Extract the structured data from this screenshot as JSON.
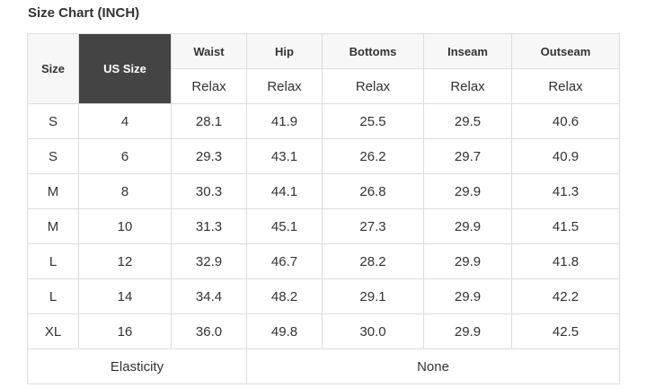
{
  "title": "Size Chart (INCH)",
  "headers": {
    "size": "Size",
    "us_size": "US Size",
    "measures": [
      "Waist",
      "Hip",
      "Bottoms",
      "Inseam",
      "Outseam"
    ],
    "sub": [
      "Relax",
      "Relax",
      "Relax",
      "Relax",
      "Relax"
    ]
  },
  "rows": [
    [
      "S",
      "4",
      "28.1",
      "41.9",
      "25.5",
      "29.5",
      "40.6"
    ],
    [
      "S",
      "6",
      "29.3",
      "43.1",
      "26.2",
      "29.7",
      "40.9"
    ],
    [
      "M",
      "8",
      "30.3",
      "44.1",
      "26.8",
      "29.9",
      "41.3"
    ],
    [
      "M",
      "10",
      "31.3",
      "45.1",
      "27.3",
      "29.9",
      "41.5"
    ],
    [
      "L",
      "12",
      "32.9",
      "46.7",
      "28.2",
      "29.9",
      "41.8"
    ],
    [
      "L",
      "14",
      "34.4",
      "48.2",
      "29.1",
      "29.9",
      "42.2"
    ],
    [
      "XL",
      "16",
      "36.0",
      "49.8",
      "30.0",
      "29.9",
      "42.5"
    ]
  ],
  "footer": {
    "label": "Elasticity",
    "value": "None"
  },
  "colors": {
    "header_dark": "#444444",
    "header_light": "#f7f7f7",
    "border": "#dddddd"
  }
}
